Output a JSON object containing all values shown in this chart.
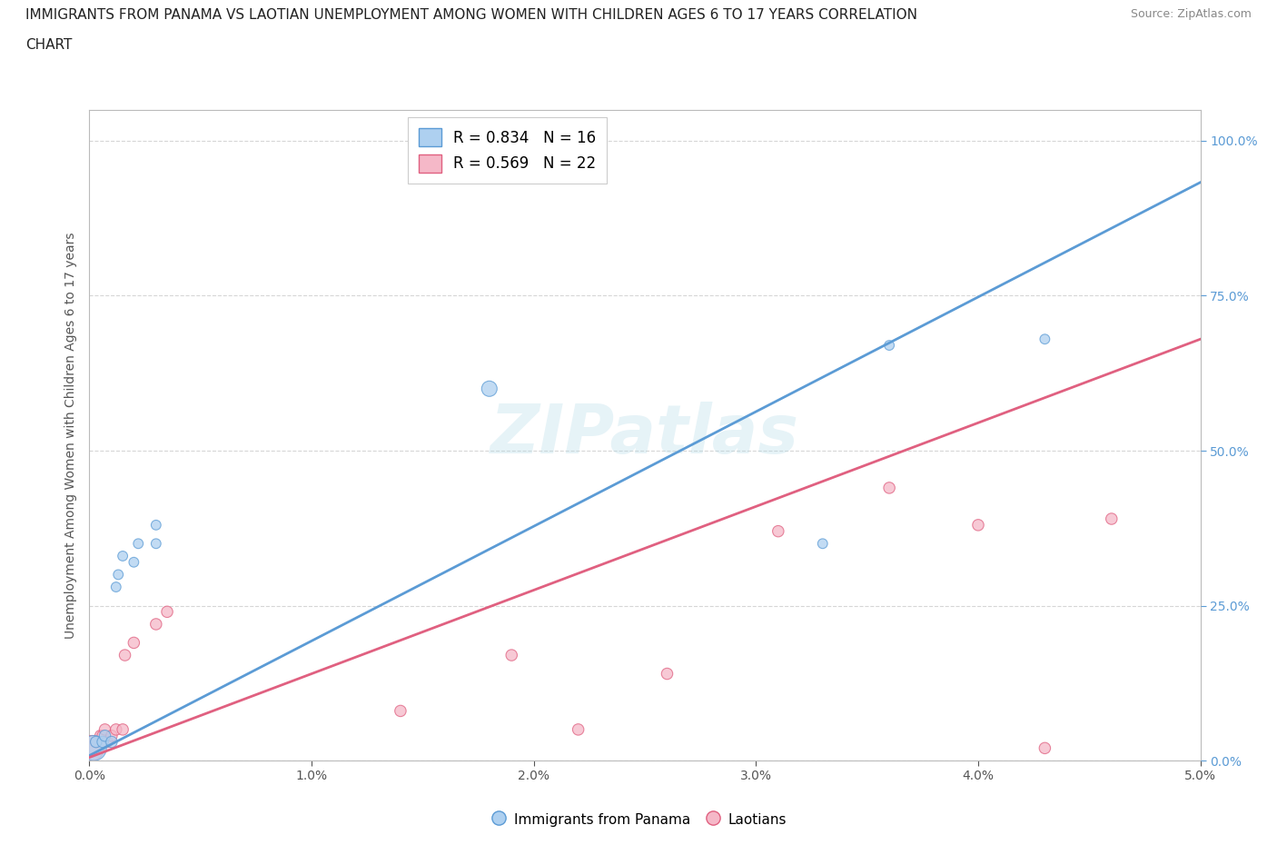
{
  "title_line1": "IMMIGRANTS FROM PANAMA VS LAOTIAN UNEMPLOYMENT AMONG WOMEN WITH CHILDREN AGES 6 TO 17 YEARS CORRELATION",
  "title_line2": "CHART",
  "source": "Source: ZipAtlas.com",
  "ylabel": "Unemployment Among Women with Children Ages 6 to 17 years",
  "xlim": [
    0.0,
    0.05
  ],
  "ylim": [
    0.0,
    1.05
  ],
  "xtick_labels": [
    "0.0%",
    "1.0%",
    "2.0%",
    "3.0%",
    "4.0%",
    "5.0%"
  ],
  "ytick_labels": [
    "0.0%",
    "25.0%",
    "50.0%",
    "75.0%",
    "100.0%"
  ],
  "ytick_values": [
    0.0,
    0.25,
    0.5,
    0.75,
    1.0
  ],
  "xtick_values": [
    0.0,
    0.01,
    0.02,
    0.03,
    0.04,
    0.05
  ],
  "panama_x": [
    0.0002,
    0.0003,
    0.0006,
    0.0007,
    0.001,
    0.0012,
    0.0013,
    0.0015,
    0.002,
    0.0022,
    0.003,
    0.003,
    0.018,
    0.033,
    0.036,
    0.043
  ],
  "panama_y": [
    0.02,
    0.03,
    0.03,
    0.04,
    0.03,
    0.28,
    0.3,
    0.33,
    0.32,
    0.35,
    0.35,
    0.38,
    0.6,
    0.35,
    0.67,
    0.68
  ],
  "panama_sizes": [
    400,
    80,
    80,
    80,
    80,
    60,
    60,
    60,
    60,
    60,
    60,
    60,
    150,
    60,
    60,
    60
  ],
  "laotian_x": [
    0.0001,
    0.0003,
    0.0005,
    0.0006,
    0.0007,
    0.0008,
    0.001,
    0.0012,
    0.0015,
    0.0016,
    0.002,
    0.003,
    0.0035,
    0.014,
    0.019,
    0.022,
    0.026,
    0.031,
    0.036,
    0.04,
    0.043,
    0.046
  ],
  "laotian_y": [
    0.02,
    0.03,
    0.04,
    0.04,
    0.05,
    0.03,
    0.04,
    0.05,
    0.05,
    0.17,
    0.19,
    0.22,
    0.24,
    0.08,
    0.17,
    0.05,
    0.14,
    0.37,
    0.44,
    0.38,
    0.02,
    0.39
  ],
  "laotian_sizes": [
    400,
    80,
    80,
    80,
    80,
    80,
    80,
    80,
    80,
    80,
    80,
    80,
    80,
    80,
    80,
    80,
    80,
    80,
    80,
    80,
    80,
    80
  ],
  "panama_color": "#aed0f0",
  "laotian_color": "#f5b8c8",
  "panama_line_color": "#5b9bd5",
  "laotian_line_color": "#e06080",
  "panama_R": 0.834,
  "panama_N": 16,
  "laotian_R": 0.569,
  "laotian_N": 22,
  "watermark": "ZIPatlas",
  "background_color": "#ffffff",
  "grid_color": "#cccccc",
  "panama_slope": 18.5,
  "panama_intercept": 0.008,
  "laotian_slope": 13.5,
  "laotian_intercept": 0.005
}
